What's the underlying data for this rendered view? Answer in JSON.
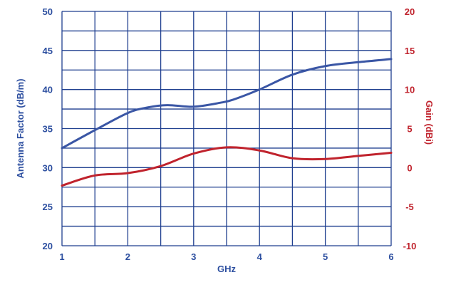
{
  "colors": {
    "grid": "#1f3f8f",
    "left_axis": "#2d4fa0",
    "right_axis": "#c0232d",
    "antenna_factor_line": "#3a56a5",
    "gain_line": "#c0232d"
  },
  "chart_data": {
    "type": "line",
    "xlabel": "GHz",
    "ylabel_left": "Antenna Factor (dB/m)",
    "ylabel_right": "Gain (dBi)",
    "xlim": [
      1,
      6
    ],
    "ylim_left": [
      20,
      50
    ],
    "ylim_right": [
      -10,
      20
    ],
    "x_ticks": [
      "1",
      "2",
      "3",
      "4",
      "5",
      "6"
    ],
    "y_left_ticks": [
      "20",
      "25",
      "30",
      "35",
      "40",
      "45",
      "50"
    ],
    "y_right_ticks": [
      "-10",
      "-5",
      "0",
      "5",
      "10",
      "15",
      "20"
    ],
    "grid": true,
    "series": [
      {
        "axis": "left",
        "x": [
          1.0,
          1.5,
          2.0,
          2.3,
          2.6,
          3.0,
          3.4,
          3.6,
          4.0,
          4.5,
          5.0,
          5.5,
          6.0
        ],
        "y": [
          32.5,
          34.8,
          37.0,
          37.7,
          38.0,
          37.8,
          38.3,
          38.7,
          40.0,
          41.9,
          43.0,
          43.5,
          43.9
        ]
      },
      {
        "axis": "right",
        "x": [
          1.0,
          1.5,
          2.0,
          2.5,
          3.0,
          3.5,
          4.0,
          4.5,
          5.0,
          5.5,
          6.0
        ],
        "y": [
          -2.3,
          -1.0,
          -0.7,
          0.2,
          1.8,
          2.6,
          2.2,
          1.2,
          1.1,
          1.5,
          1.9
        ]
      }
    ]
  }
}
